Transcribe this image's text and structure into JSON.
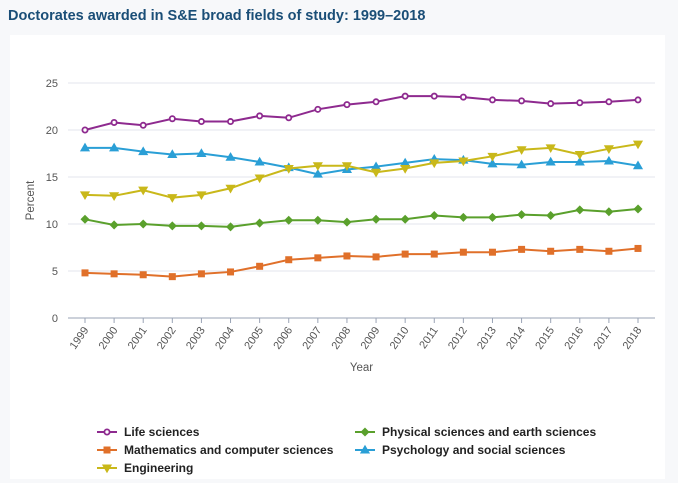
{
  "title": "Doctorates awarded in S&E broad fields of study: 1999–2018",
  "chart_data": {
    "type": "line",
    "title": "Doctorates awarded in S&E broad fields of study: 1999–2018",
    "xlabel": "Year",
    "ylabel": "Percent",
    "ylim": [
      0,
      25
    ],
    "yticks": [
      "0",
      "5",
      "10",
      "15",
      "20",
      "25"
    ],
    "x": [
      "1999",
      "2000",
      "2001",
      "2002",
      "2003",
      "2004",
      "2005",
      "2006",
      "2007",
      "2008",
      "2009",
      "2010",
      "2011",
      "2012",
      "2013",
      "2014",
      "2015",
      "2016",
      "2017",
      "2018"
    ],
    "legend_position": "bottom",
    "series": [
      {
        "name": "Life sciences",
        "color": "#8e2a8f",
        "marker": "circle",
        "values": [
          20.0,
          20.8,
          20.5,
          21.2,
          20.9,
          20.9,
          21.5,
          21.3,
          22.2,
          22.7,
          23.0,
          23.6,
          23.6,
          23.5,
          23.2,
          23.1,
          22.8,
          22.9,
          23.0,
          23.2
        ]
      },
      {
        "name": "Physical sciences and earth sciences",
        "color": "#5aa02c",
        "marker": "diamond",
        "values": [
          10.5,
          9.9,
          10.0,
          9.8,
          9.8,
          9.7,
          10.1,
          10.4,
          10.4,
          10.2,
          10.5,
          10.5,
          10.9,
          10.7,
          10.7,
          11.0,
          10.9,
          11.5,
          11.3,
          11.6
        ]
      },
      {
        "name": "Mathematics and computer sciences",
        "color": "#e0702a",
        "marker": "square",
        "values": [
          4.8,
          4.7,
          4.6,
          4.4,
          4.7,
          4.9,
          5.5,
          6.2,
          6.4,
          6.6,
          6.5,
          6.8,
          6.8,
          7.0,
          7.0,
          7.3,
          7.1,
          7.3,
          7.1,
          7.4
        ]
      },
      {
        "name": "Psychology and social sciences",
        "color": "#2a9fd6",
        "marker": "triangle-up",
        "values": [
          18.1,
          18.1,
          17.7,
          17.4,
          17.5,
          17.1,
          16.6,
          16.0,
          15.3,
          15.8,
          16.1,
          16.5,
          16.9,
          16.8,
          16.4,
          16.3,
          16.6,
          16.6,
          16.7,
          16.2
        ]
      },
      {
        "name": "Engineering",
        "color": "#c9b81a",
        "marker": "triangle-down",
        "values": [
          13.1,
          13.0,
          13.6,
          12.8,
          13.1,
          13.8,
          14.9,
          15.9,
          16.2,
          16.2,
          15.5,
          15.9,
          16.5,
          16.7,
          17.2,
          17.9,
          18.1,
          17.4,
          18.0,
          18.5
        ]
      }
    ]
  }
}
